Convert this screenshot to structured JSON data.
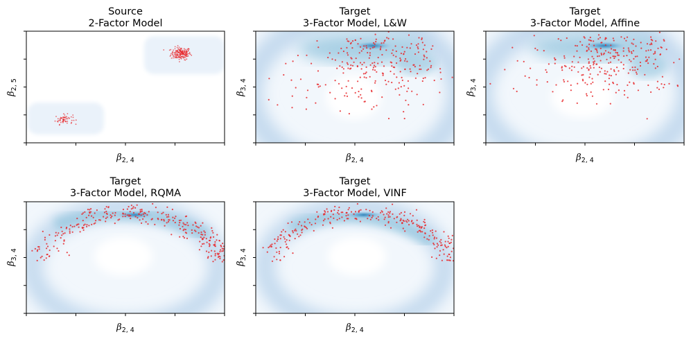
{
  "chart_data": [
    {
      "type": "scatter",
      "title_line1": "Source",
      "title_line2": "2-Factor Model",
      "xlabel": {
        "sym": "β",
        "sub": "2, 4"
      },
      "ylabel": {
        "sym": "β",
        "sub": "2, 5"
      },
      "xlim": [
        0,
        1
      ],
      "ylim": [
        0,
        1
      ],
      "series": [
        {
          "name": "clusters",
          "kind": "gauss",
          "clusters": [
            {
              "cx": 0.78,
              "cy": 0.8,
              "sx": 0.025,
              "sy": 0.028,
              "n": 180
            },
            {
              "cx": 0.19,
              "cy": 0.21,
              "sx": 0.022,
              "sy": 0.022,
              "n": 60
            }
          ]
        }
      ]
    },
    {
      "type": "scatter",
      "title_line1": "Target",
      "title_line2": "3-Factor Model, L&W",
      "xlabel": {
        "sym": "β",
        "sub": "2, 4"
      },
      "ylabel": {
        "sym": "β",
        "sub": "3, 4"
      },
      "xlim": [
        0,
        1
      ],
      "ylim": [
        0,
        1
      ],
      "series": [
        {
          "name": "samples",
          "kind": "scatter",
          "n": 260,
          "cx": 0.55,
          "cy": 0.62,
          "sx": 0.2,
          "sy": 0.18
        }
      ]
    },
    {
      "type": "scatter",
      "title_line1": "Target",
      "title_line2": "3-Factor Model, Affine",
      "xlabel": {
        "sym": "β",
        "sub": "2, 4"
      },
      "ylabel": {
        "sym": "β",
        "sub": "3, 4"
      },
      "xlim": [
        0,
        1
      ],
      "ylim": [
        0,
        1
      ],
      "series": [
        {
          "name": "samples",
          "kind": "scatter",
          "n": 280,
          "cx": 0.56,
          "cy": 0.66,
          "sx": 0.19,
          "sy": 0.16
        }
      ]
    },
    {
      "type": "scatter",
      "title_line1": "Target",
      "title_line2": "3-Factor Model, RQMA",
      "xlabel": {
        "sym": "β",
        "sub": "2, 4"
      },
      "ylabel": {
        "sym": "β",
        "sub": "3, 4"
      },
      "xlim": [
        0,
        1
      ],
      "ylim": [
        0,
        1
      ],
      "series": [
        {
          "name": "samples",
          "kind": "arc",
          "n": 300
        }
      ]
    },
    {
      "type": "scatter",
      "title_line1": "Target",
      "title_line2": "3-Factor Model, VINF",
      "xlabel": {
        "sym": "β",
        "sub": "2, 4"
      },
      "ylabel": {
        "sym": "β",
        "sub": "3, 4"
      },
      "xlim": [
        0,
        1
      ],
      "ylim": [
        0,
        1
      ],
      "series": [
        {
          "name": "samples",
          "kind": "arc",
          "n": 280
        }
      ]
    }
  ],
  "colors": {
    "points": "#e8282b",
    "density_light": "#deebf7",
    "density_mid": "#9ecae1",
    "density_dark": "#2c7fb8",
    "axis": "#000000"
  }
}
